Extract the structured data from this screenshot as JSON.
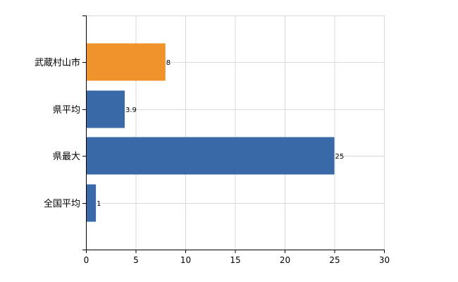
{
  "chart_data": {
    "type": "bar",
    "orientation": "horizontal",
    "categories": [
      "武蔵村山市",
      "県平均",
      "県最大",
      "全国平均"
    ],
    "values": [
      8,
      3.9,
      25,
      1
    ],
    "value_labels": [
      "8",
      "3.9",
      "25",
      "1"
    ],
    "bar_colors": [
      "#f0932d",
      "#3a69a8",
      "#3a69a8",
      "#3a69a8"
    ],
    "xlim": [
      0,
      30
    ],
    "xticks": [
      0,
      5,
      10,
      15,
      20,
      25,
      30
    ],
    "tick_labels": [
      "0",
      "5",
      "10",
      "15",
      "20",
      "25",
      "30"
    ],
    "grid": true,
    "title": "",
    "xlabel": "",
    "ylabel": ""
  }
}
